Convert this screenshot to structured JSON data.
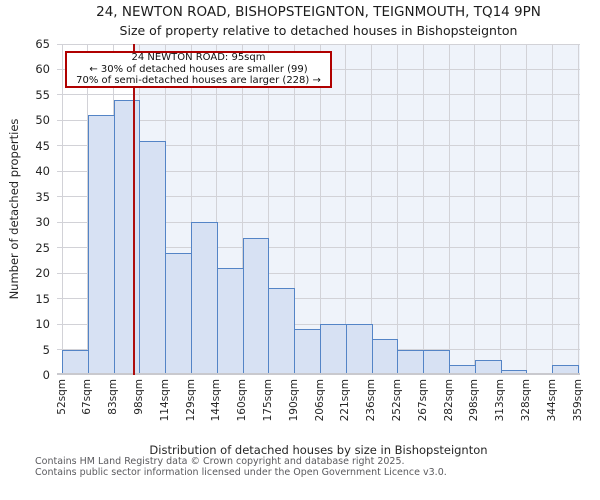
{
  "header": {
    "title": "24, NEWTON ROAD, BISHOPSTEIGNTON, TEIGNMOUTH, TQ14 9PN",
    "subtitle": "Size of property relative to detached houses in Bishopsteignton"
  },
  "annotation": {
    "line1": "24 NEWTON ROAD: 95sqm",
    "line2": "← 30% of detached houses are smaller (99)",
    "line3": "70% of semi-detached houses are larger (228) →"
  },
  "chart_data": {
    "type": "bar",
    "title": "24, NEWTON ROAD, BISHOPSTEIGNTON, TEIGNMOUTH, TQ14 9PN",
    "subtitle": "Size of property relative to detached houses in Bishopsteignton",
    "xlabel": "Distribution of detached houses by size in Bishopsteignton",
    "ylabel": "Number of detached properties",
    "x_tick_labels": [
      "52sqm",
      "67sqm",
      "83sqm",
      "98sqm",
      "114sqm",
      "129sqm",
      "144sqm",
      "160sqm",
      "175sqm",
      "190sqm",
      "206sqm",
      "221sqm",
      "236sqm",
      "252sqm",
      "267sqm",
      "282sqm",
      "298sqm",
      "313sqm",
      "328sqm",
      "344sqm",
      "359sqm"
    ],
    "bin_edges_sqm": [
      52,
      67,
      83,
      98,
      114,
      129,
      144,
      160,
      175,
      190,
      206,
      221,
      236,
      252,
      267,
      282,
      298,
      313,
      328,
      344,
      359
    ],
    "values": [
      5,
      51,
      54,
      46,
      24,
      30,
      21,
      27,
      17,
      9,
      10,
      10,
      7,
      5,
      5,
      2,
      3,
      1,
      0,
      2
    ],
    "ylim": [
      0,
      65
    ],
    "y_ticks": [
      0,
      5,
      10,
      15,
      20,
      25,
      30,
      35,
      40,
      45,
      50,
      55,
      60,
      65
    ],
    "grid": true,
    "legend": null,
    "marker_value_sqm": 95,
    "colors": {
      "bar_fill": "#d7e1f3",
      "bar_edge": "#5484c6",
      "marker_line": "#ad0c0c",
      "annotation_border": "#b00000",
      "shaded_band": "#eff3fa",
      "gridline": "#d2d2d7"
    }
  },
  "footer": {
    "line1": "Contains HM Land Registry data © Crown copyright and database right 2025.",
    "line2": "Contains public sector information licensed under the Open Government Licence v3.0."
  }
}
